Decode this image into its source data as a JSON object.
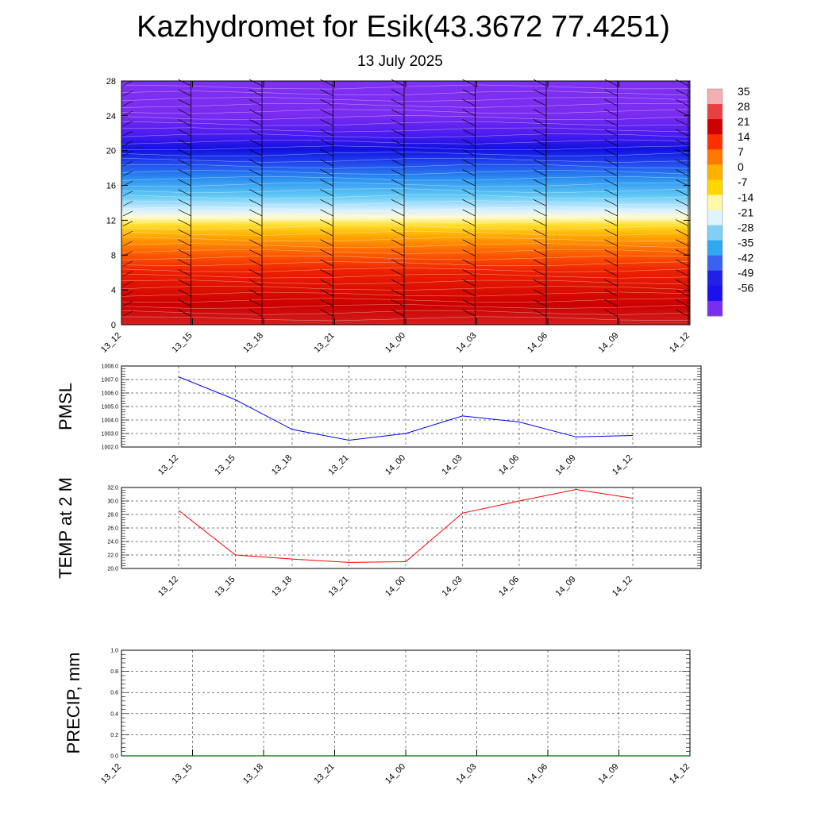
{
  "header": {
    "title": "Kazhydromet for Esik(43.3672 77.4251)",
    "subtitle": "13 July 2025"
  },
  "time_labels": [
    "13_12",
    "13_15",
    "13_18",
    "13_21",
    "14_00",
    "14_03",
    "14_06",
    "14_09",
    "14_12"
  ],
  "colors": {
    "pmsl_line": "#0000ff",
    "temp_line": "#ff0000",
    "precip_line": "#006400"
  },
  "chart_data": [
    {
      "type": "heatmap",
      "name": "upper-air-temperature",
      "title": "",
      "xlabel": "",
      "ylabel": "",
      "x": [
        "13_12",
        "13_15",
        "13_18",
        "13_21",
        "14_00",
        "14_03",
        "14_06",
        "14_09",
        "14_12"
      ],
      "ylim": [
        0,
        28
      ],
      "yticks": [
        "0",
        "4",
        "8",
        "12",
        "16",
        "20",
        "24",
        "28"
      ],
      "colorbar": {
        "labels": [
          "35",
          "28",
          "21",
          "14",
          "7",
          "0",
          "-7",
          "-14",
          "-21",
          "-28",
          "-35",
          "-42",
          "-49",
          "-56"
        ],
        "colors": [
          "#f2b0b0",
          "#e84040",
          "#cc0000",
          "#ff3000",
          "#ff7800",
          "#ffb000",
          "#ffd800",
          "#fff8a8",
          "#dff4ff",
          "#7fd0f4",
          "#30a8f0",
          "#3a62f0",
          "#2020e6",
          "#1a10f0",
          "#7a2cf0"
        ]
      },
      "wind_barbs": true,
      "grid": false
    },
    {
      "type": "line",
      "name": "pmsl",
      "ylabel": "PMSL",
      "x": [
        "13_12",
        "13_15",
        "13_18",
        "13_21",
        "14_00",
        "14_03",
        "14_06",
        "14_09",
        "14_12"
      ],
      "yticks": [
        "1002.0",
        "1003.0",
        "1004.0",
        "1005.0",
        "1006.0",
        "1007.0",
        "1008.0"
      ],
      "ylim": [
        1002,
        1008
      ],
      "series": [
        {
          "values": [
            1007.2,
            1005.5,
            1003.3,
            1002.5,
            1003.0,
            1004.3,
            1003.85,
            1002.75,
            1002.85
          ]
        }
      ],
      "grid": true
    },
    {
      "type": "line",
      "name": "temp-2m",
      "ylabel": "TEMP at 2 M",
      "x": [
        "13_12",
        "13_15",
        "13_18",
        "13_21",
        "14_00",
        "14_03",
        "14_06",
        "14_09",
        "14_12"
      ],
      "yticks": [
        "20.0",
        "22.0",
        "24.0",
        "26.0",
        "28.0",
        "30.0",
        "32.0"
      ],
      "ylim": [
        20,
        32
      ],
      "series": [
        {
          "values": [
            28.6,
            22.0,
            21.4,
            20.9,
            21.0,
            28.2,
            30.0,
            31.7,
            30.4
          ]
        }
      ],
      "grid": true
    },
    {
      "type": "line",
      "name": "precip",
      "ylabel": "PRECIP, mm",
      "x": [
        "13_12",
        "13_15",
        "13_18",
        "13_21",
        "14_00",
        "14_03",
        "14_06",
        "14_09",
        "14_12"
      ],
      "yticks": [
        "0.0",
        "0.2",
        "0.4",
        "0.6",
        "0.8",
        "1.0"
      ],
      "ylim": [
        0,
        1
      ],
      "series": [
        {
          "values": [
            0,
            0,
            0,
            0,
            0,
            0,
            0,
            0,
            0
          ]
        }
      ],
      "grid": true
    }
  ]
}
